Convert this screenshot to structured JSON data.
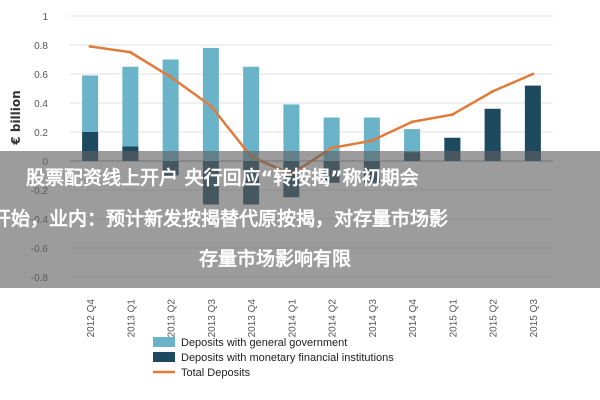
{
  "chart_data": {
    "type": "bar",
    "categories": [
      "2012 Q4",
      "2013 Q1",
      "2013 Q2",
      "2013 Q3",
      "2013 Q4",
      "2014 Q1",
      "2014 Q2",
      "2014 Q3",
      "2014 Q4",
      "2015 Q1",
      "2015 Q2",
      "2015 Q3"
    ],
    "series": [
      {
        "name": "Deposits with general government",
        "kind": "bar",
        "color": "#6ab3c9",
        "values": [
          0.59,
          0.65,
          0.7,
          0.78,
          0.65,
          0.39,
          0.3,
          0.3,
          0.22,
          0.16,
          0.12,
          0.08
        ]
      },
      {
        "name": "Deposits with monetary financial institutions",
        "kind": "bar",
        "color": "#1e4a60",
        "values": [
          0.2,
          0.1,
          -0.1,
          -0.3,
          -0.3,
          -0.25,
          -0.15,
          -0.15,
          0.06,
          0.16,
          0.36,
          0.52
        ]
      },
      {
        "name": "Total Deposits",
        "kind": "line",
        "color": "#e07b39",
        "values": [
          0.79,
          0.75,
          0.58,
          0.38,
          0.03,
          -0.09,
          0.09,
          0.14,
          0.27,
          0.32,
          0.48,
          0.6
        ]
      }
    ],
    "ylabel": "€ billion",
    "ylim": [
      -0.8,
      1.0
    ],
    "yticks": [
      "1",
      "0.8",
      "0.6",
      "0.4",
      "0.2",
      "0",
      "-0.2",
      "-0.4",
      "-0.6",
      "-0.8"
    ],
    "grid": true,
    "legend_position": "bottom-left"
  },
  "overlay": {
    "line1": "股票配资线上开户 央行回应“转按揭”称初期会",
    "line2": "开始，业内：预计新发按揭替代原按揭，对存量市场影",
    "line3": "存量市场影响有限"
  }
}
